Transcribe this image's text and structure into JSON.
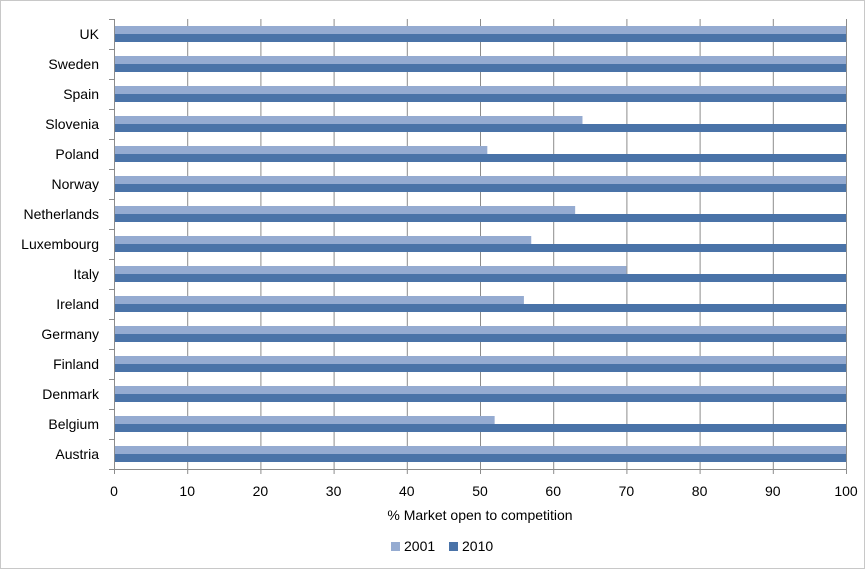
{
  "chart_data": {
    "type": "bar",
    "orientation": "horizontal",
    "categories": [
      "UK",
      "Sweden",
      "Spain",
      "Slovenia",
      "Poland",
      "Norway",
      "Netherlands",
      "Luxembourg",
      "Italy",
      "Ireland",
      "Germany",
      "Finland",
      "Denmark",
      "Belgium",
      "Austria"
    ],
    "series": [
      {
        "name": "2001",
        "color": "#95abd1",
        "values": [
          100,
          100,
          100,
          64,
          51,
          100,
          63,
          57,
          70,
          56,
          100,
          100,
          100,
          52,
          100
        ]
      },
      {
        "name": "2010",
        "color": "#4a73a8",
        "values": [
          100,
          100,
          100,
          100,
          100,
          100,
          100,
          100,
          100,
          100,
          100,
          100,
          100,
          100,
          100
        ]
      }
    ],
    "xlabel": "% Market open to competition",
    "ylabel": "",
    "xlim": [
      0,
      100
    ],
    "xticks": [
      0,
      10,
      20,
      30,
      40,
      50,
      60,
      70,
      80,
      90,
      100
    ],
    "grid": "vertical",
    "legend": "bottom"
  }
}
